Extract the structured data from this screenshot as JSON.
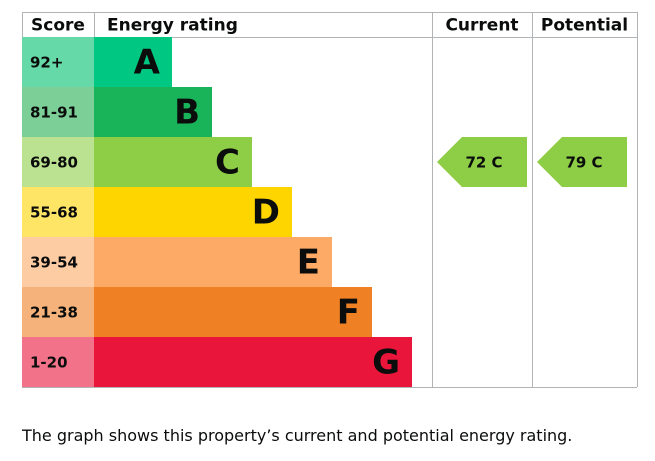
{
  "chart_data": {
    "type": "epc",
    "headers": [
      "Score",
      "Energy rating",
      "Current",
      "Potential"
    ],
    "bands": [
      {
        "score": "92+",
        "letter": "A",
        "color": "#00c781",
        "score_color": "#66d9a8"
      },
      {
        "score": "81-91",
        "letter": "B",
        "color": "#19b459",
        "score_color": "#7ccf97"
      },
      {
        "score": "69-80",
        "letter": "C",
        "color": "#8dce46",
        "score_color": "#bbe290"
      },
      {
        "score": "55-68",
        "letter": "D",
        "color": "#ffd500",
        "score_color": "#ffe566"
      },
      {
        "score": "39-54",
        "letter": "E",
        "color": "#fcaa65",
        "score_color": "#fdcca3"
      },
      {
        "score": "21-38",
        "letter": "F",
        "color": "#ef8023",
        "score_color": "#f5b37b"
      },
      {
        "score": "1-20",
        "letter": "G",
        "color": "#e9153b",
        "score_color": "#f27389"
      }
    ],
    "current": {
      "value": 72,
      "label": "72 C"
    },
    "potential": {
      "value": 79,
      "label": "79 C"
    },
    "caption": "The graph shows this property’s current and potential energy rating."
  }
}
